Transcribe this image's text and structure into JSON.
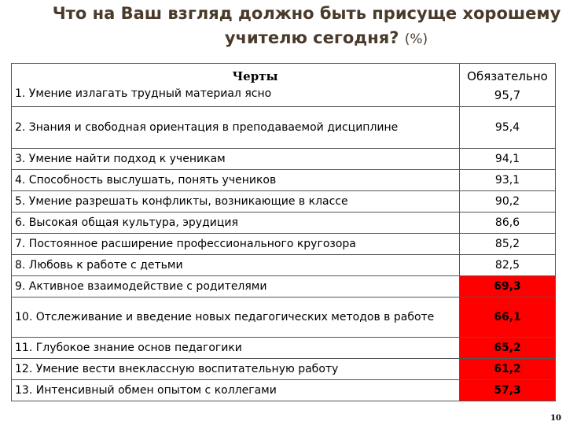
{
  "title": {
    "line1": "Что на Ваш взгляд должно быть присуще хорошему",
    "line2": "учителю сегодня?",
    "unit": "(%)"
  },
  "table": {
    "header_traits": "Черты",
    "header_required": "Обязательно",
    "rows": [
      {
        "name": "1. Умение излагать трудный материал ясно",
        "value": "95,7",
        "highlight": false
      },
      {
        "name": "2. Знания и свободная ориентация в преподаваемой дисциплине",
        "value": "95,4",
        "highlight": false
      },
      {
        "name": "3. Умение найти подход к ученикам",
        "value": "94,1",
        "highlight": false
      },
      {
        "name": "4. Способность выслушать, понять учеников",
        "value": "93,1",
        "highlight": false
      },
      {
        "name": "5. Умение разрешать конфликты, возникающие в классе",
        "value": "90,2",
        "highlight": false
      },
      {
        "name": "6. Высокая общая культура, эрудиция",
        "value": "86,6",
        "highlight": false
      },
      {
        "name": "7. Постоянное расширение профессионального кругозора",
        "value": "85,2",
        "highlight": false
      },
      {
        "name": "8. Любовь к работе с детьми",
        "value": "82,5",
        "highlight": false
      },
      {
        "name": "9. Активное взаимодействие с родителями",
        "value": "69,3",
        "highlight": true
      },
      {
        "name": "10. Отслеживание и введение новых педагогических методов в работе",
        "value": "66,1",
        "highlight": true
      },
      {
        "name": "11. Глубокое знание основ педагогики",
        "value": "65,2",
        "highlight": true
      },
      {
        "name": "12. Умение вести внеклассную воспитательную работу",
        "value": "61,2",
        "highlight": true
      },
      {
        "name": "13. Интенсивный обмен опытом с коллегами",
        "value": "57,3",
        "highlight": true
      }
    ],
    "highlight_color": "#ff0000"
  },
  "page_number": "10"
}
